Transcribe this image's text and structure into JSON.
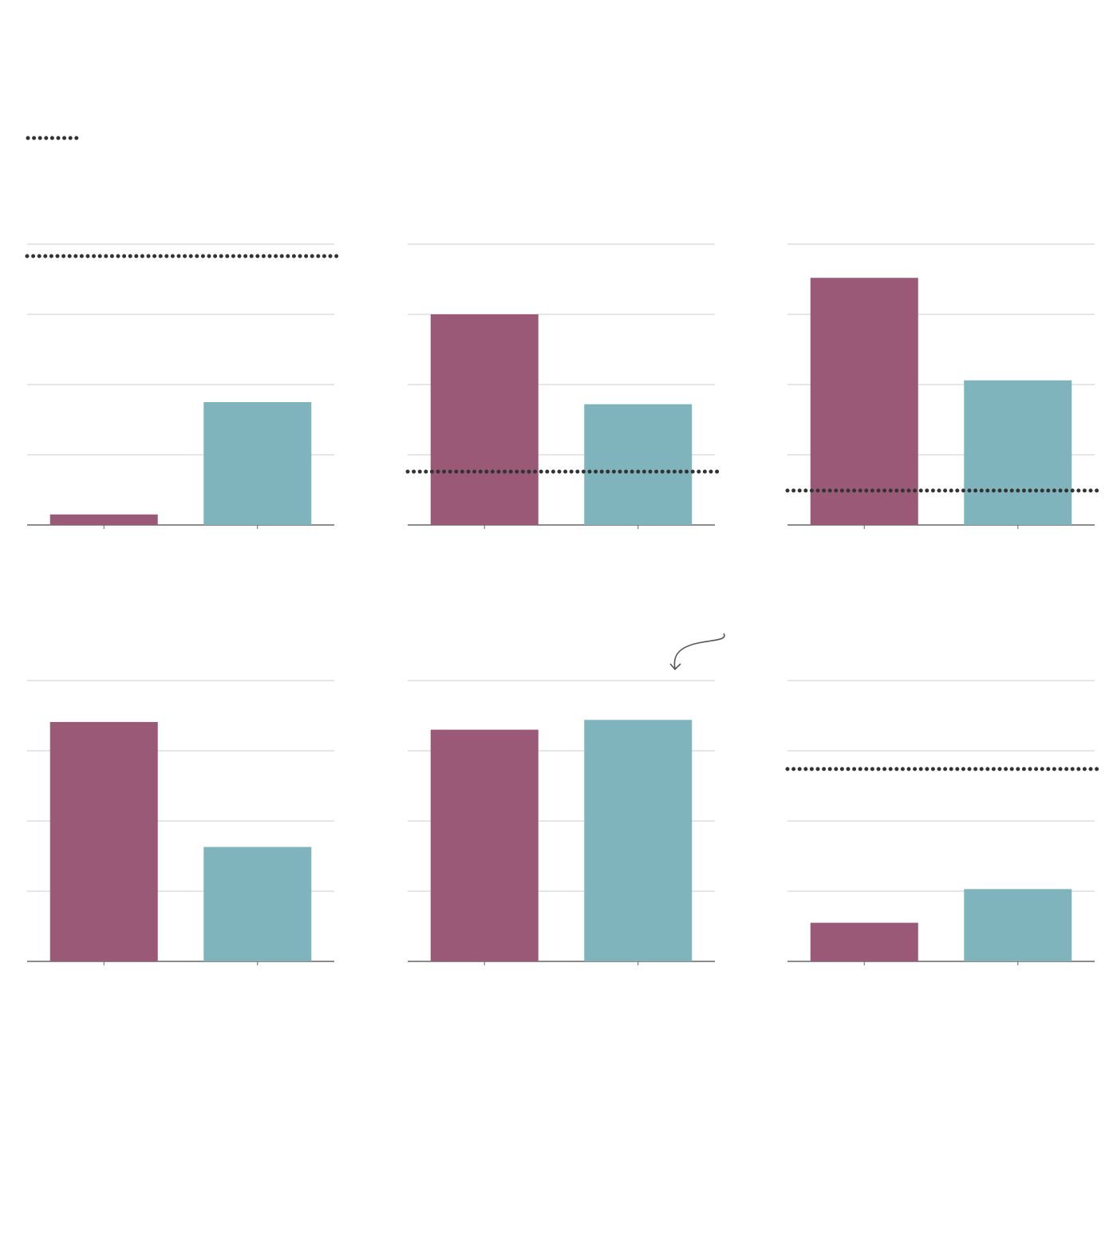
{
  "chart_data": [
    {
      "type": "bar",
      "categories": [
        null,
        null
      ],
      "values": [
        0.15,
        1.75
      ],
      "colors": [
        "#9a5a77",
        "#80b4bd"
      ],
      "reference": 3.83,
      "ylim": [
        0,
        4
      ],
      "yticks": [
        0,
        1,
        2,
        3,
        4
      ],
      "grid": true
    },
    {
      "type": "bar",
      "categories": [
        null,
        null
      ],
      "values": [
        3.0,
        1.72
      ],
      "colors": [
        "#9a5a77",
        "#80b4bd"
      ],
      "reference": 0.76,
      "ylim": [
        0,
        4
      ],
      "yticks": [
        0,
        1,
        2,
        3,
        4
      ],
      "grid": true
    },
    {
      "type": "bar",
      "categories": [
        null,
        null
      ],
      "values": [
        3.52,
        2.06
      ],
      "colors": [
        "#9a5a77",
        "#80b4bd"
      ],
      "reference": 0.49,
      "ylim": [
        0,
        4
      ],
      "yticks": [
        0,
        1,
        2,
        3,
        4
      ],
      "grid": true
    },
    {
      "type": "bar",
      "categories": [
        null,
        null
      ],
      "values": [
        3.41,
        1.63
      ],
      "colors": [
        "#9a5a77",
        "#80b4bd"
      ],
      "ylim": [
        0,
        4
      ],
      "yticks": [
        0,
        1,
        2,
        3,
        4
      ],
      "grid": true
    },
    {
      "type": "bar",
      "categories": [
        null,
        null
      ],
      "values": [
        3.3,
        3.44
      ],
      "colors": [
        "#9a5a77",
        "#80b4bd"
      ],
      "ylim": [
        0,
        4
      ],
      "yticks": [
        0,
        1,
        2,
        3,
        4
      ],
      "grid": true
    },
    {
      "type": "bar",
      "categories": [
        null,
        null
      ],
      "values": [
        0.55,
        1.03
      ],
      "colors": [
        "#9a5a77",
        "#80b4bd"
      ],
      "reference": 2.74,
      "ylim": [
        0,
        4
      ],
      "yticks": [
        0,
        1,
        2,
        3,
        4
      ],
      "grid": true
    }
  ]
}
